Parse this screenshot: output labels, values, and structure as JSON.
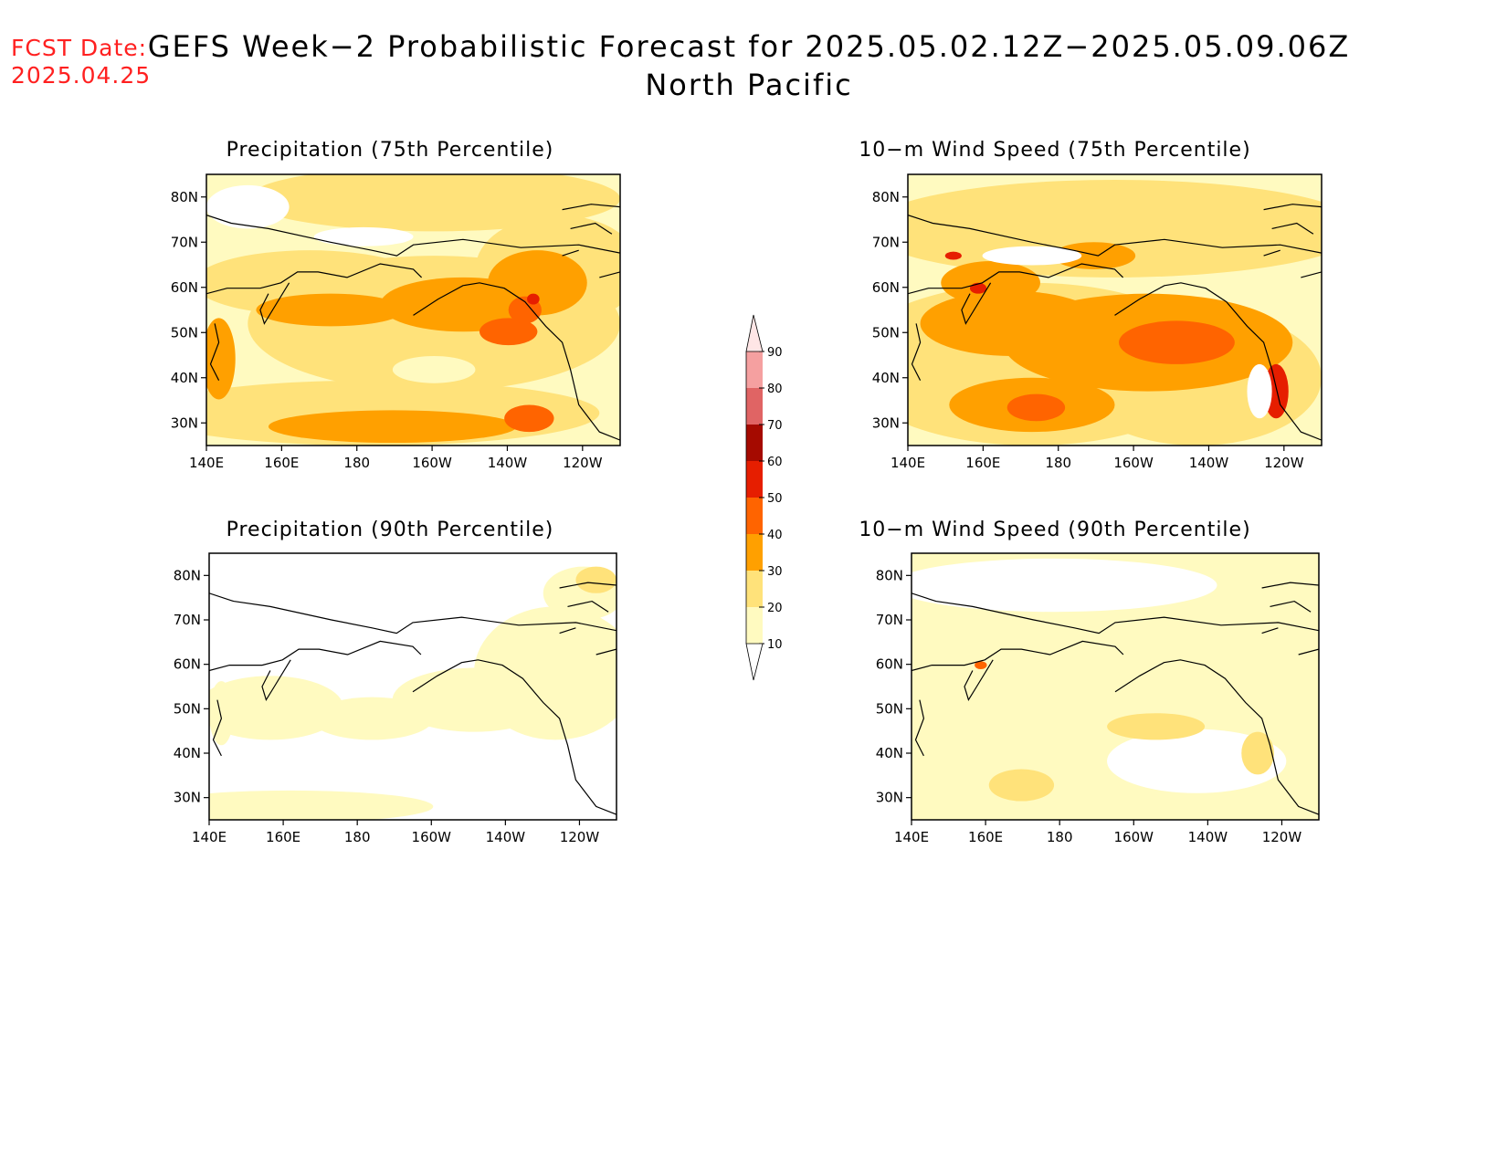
{
  "header": {
    "fcst_label": "FCST Date:",
    "fcst_date": "2025.04.25",
    "title": "GEFS Week−2 Probabilistic Forecast for 2025.05.02.12Z−2025.05.09.06Z",
    "subtitle": "North Pacific"
  },
  "axes": {
    "lon_labels": [
      "140E",
      "160E",
      "180",
      "160W",
      "140W",
      "120W"
    ],
    "lat_labels": [
      "80N",
      "70N",
      "60N",
      "50N",
      "40N",
      "30N"
    ]
  },
  "panels": [
    {
      "title": "Precipitation (75th Percentile)",
      "variable": "precipitation",
      "percentile": 75
    },
    {
      "title": "10−m Wind Speed (75th Percentile)",
      "variable": "wind",
      "percentile": 75
    },
    {
      "title": "Precipitation (90th Percentile)",
      "variable": "precipitation",
      "percentile": 90
    },
    {
      "title": "10−m Wind Speed (90th Percentile)",
      "variable": "wind",
      "percentile": 90
    }
  ],
  "colorbar": {
    "levels": [
      "10",
      "20",
      "30",
      "40",
      "50",
      "60",
      "70",
      "80",
      "90"
    ],
    "colors": [
      "#fffac0",
      "#ffe27a",
      "#ffa000",
      "#ff6400",
      "#e61e00",
      "#a50a00",
      "#e06464",
      "#f5a0a0",
      "#ffe6e6"
    ]
  }
}
